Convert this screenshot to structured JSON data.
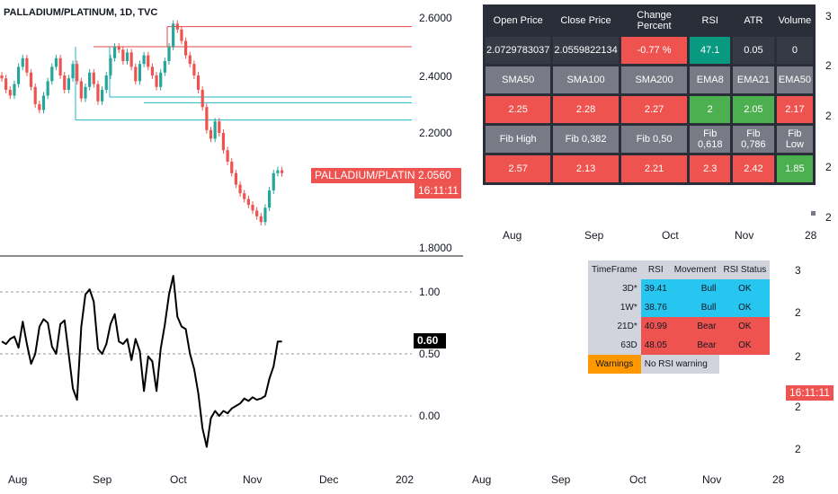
{
  "header": {
    "title": "PALLADIUM/PLATINUM, 1D, TVC"
  },
  "price_axis": {
    "labels": [
      "2.6000",
      "2.4000",
      "2.2000",
      "1.8000"
    ]
  },
  "rsi_axis": {
    "labels": [
      "1.00",
      "0.50",
      "0.00"
    ]
  },
  "last_price": {
    "symbol": "PALLADIUM/PLATINUM",
    "value": "2.0560",
    "time": "16:11:11"
  },
  "rsi_value": "0.60",
  "time_axis": {
    "labels": [
      "Aug",
      "Sep",
      "Oct",
      "Nov",
      "Dec",
      "202"
    ]
  },
  "time_axis_b": {
    "labels": [
      "Aug",
      "Sep",
      "Oct",
      "Nov",
      "28"
    ]
  },
  "time_axis_c": {
    "labels": [
      "Aug",
      "Sep",
      "Oct",
      "Nov",
      "28"
    ]
  },
  "right_edge_labels": [
    "3",
    "2",
    "2",
    "2",
    "2"
  ],
  "right_edge_labels_b": [
    "3",
    "2",
    "2",
    "2",
    "2"
  ],
  "right_time_tag": "16:11:11",
  "metrics_table": {
    "row1_headers": [
      "Open Price",
      "Close Price",
      "Change Percent",
      "RSI",
      "ATR",
      "Volume"
    ],
    "row1_values": [
      "2.0729783037",
      "2.0559822134",
      "-0.77 %",
      "47.1",
      "0.05",
      "0"
    ],
    "row2_headers": [
      "SMA50",
      "SMA100",
      "SMA200",
      "EMA8",
      "EMA21",
      "EMA50"
    ],
    "row2_values": [
      "2.25",
      "2.28",
      "2.27",
      "2",
      "2.05",
      "2.17"
    ],
    "row3_headers": [
      "Fib High",
      "Fib 0,382",
      "Fib 0,50",
      "Fib 0,618",
      "Fib 0,786",
      "Fib Low"
    ],
    "row3_values": [
      "2.57",
      "2.13",
      "2.21",
      "2.3",
      "2.42",
      "1.85"
    ]
  },
  "rsi_table": {
    "headers": [
      "TimeFrame",
      "RSI",
      "Movement",
      "RSI Status"
    ],
    "rows": [
      [
        "3D*",
        "39.41",
        "Bull",
        "OK"
      ],
      [
        "1W*",
        "38.76",
        "Bull",
        "OK"
      ],
      [
        "21D*",
        "40.99",
        "Bear",
        "OK"
      ],
      [
        "63D",
        "48.05",
        "Bear",
        "OK"
      ]
    ],
    "warnings_label": "Warnings",
    "warnings_value": "No RSI warning"
  },
  "colors": {
    "up": "#26a69a",
    "down": "#ef5350",
    "teal": "#22b5c9",
    "red_line": "#e04848"
  },
  "chart_data": [
    {
      "type": "candlestick",
      "title": "PALLADIUM/PLATINUM, 1D, TVC",
      "ylim": [
        1.79,
        2.64
      ],
      "x_tick_labels": [
        "Aug",
        "Sep",
        "Oct",
        "Nov",
        "Dec",
        "202"
      ],
      "close": [
        2.39,
        2.35,
        2.33,
        2.37,
        2.43,
        2.46,
        2.41,
        2.36,
        2.3,
        2.28,
        2.33,
        2.38,
        2.43,
        2.46,
        2.4,
        2.35,
        2.39,
        2.44,
        2.38,
        2.32,
        2.36,
        2.41,
        2.37,
        2.31,
        2.35,
        2.4,
        2.46,
        2.5,
        2.49,
        2.45,
        2.48,
        2.43,
        2.38,
        2.44,
        2.47,
        2.43,
        2.4,
        2.36,
        2.41,
        2.45,
        2.5,
        2.58,
        2.56,
        2.52,
        2.47,
        2.44,
        2.4,
        2.35,
        2.29,
        2.21,
        2.18,
        2.24,
        2.2,
        2.14,
        2.1,
        2.06,
        2.02,
        1.99,
        1.97,
        1.95,
        1.93,
        1.91,
        1.89,
        1.94,
        2.0,
        2.06,
        2.07,
        2.06
      ],
      "levels": [
        {
          "value": 2.57,
          "color": "red"
        },
        {
          "value": 2.5,
          "color": "red"
        },
        {
          "value": 2.325,
          "color": "teal"
        },
        {
          "value": 2.305,
          "color": "teal"
        },
        {
          "value": 2.245,
          "color": "teal"
        }
      ],
      "last_value": 2.056
    },
    {
      "type": "line",
      "ylim": [
        -0.25,
        1.18
      ],
      "y_ticks": [
        1.0,
        0.5,
        0.0
      ],
      "values": [
        0.6,
        0.58,
        0.62,
        0.64,
        0.55,
        0.76,
        0.58,
        0.42,
        0.5,
        0.72,
        0.78,
        0.75,
        0.56,
        0.5,
        0.74,
        0.77,
        0.5,
        0.22,
        0.13,
        0.72,
        0.98,
        1.02,
        0.92,
        0.54,
        0.5,
        0.58,
        0.74,
        0.82,
        0.6,
        0.58,
        0.62,
        0.45,
        0.62,
        0.52,
        0.2,
        0.48,
        0.44,
        0.2,
        0.54,
        0.74,
        0.98,
        1.13,
        0.8,
        0.72,
        0.7,
        0.5,
        0.38,
        0.18,
        -0.1,
        -0.25,
        -0.02,
        0.04,
        0.0,
        0.04,
        0.02,
        0.06,
        0.08,
        0.1,
        0.14,
        0.12,
        0.15,
        0.13,
        0.14,
        0.16,
        0.3,
        0.4,
        0.6,
        0.6
      ],
      "last_value": 0.6
    }
  ]
}
